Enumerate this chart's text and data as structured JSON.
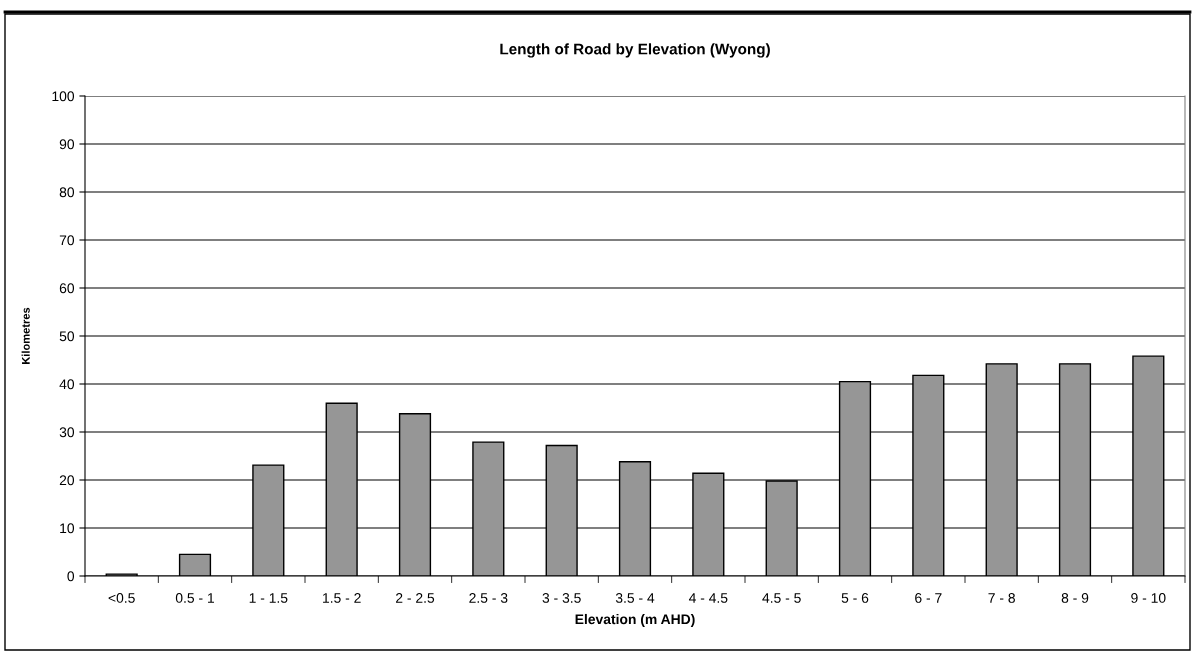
{
  "chart_data": {
    "type": "bar",
    "title": "Length of Road by Elevation (Wyong)",
    "xlabel": "Elevation (m AHD)",
    "ylabel": "Kilometres",
    "categories": [
      "<0.5",
      "0.5 - 1",
      "1 - 1.5",
      "1.5 - 2",
      "2 - 2.5",
      "2.5 - 3",
      "3 - 3.5",
      "3.5 - 4",
      "4 - 4.5",
      "4.5 - 5",
      "5 - 6",
      "6 - 7",
      "7 - 8",
      "8 - 9",
      "9 - 10"
    ],
    "values": [
      0.4,
      4.5,
      23.1,
      36.0,
      33.8,
      27.9,
      27.2,
      23.8,
      21.4,
      19.8,
      40.5,
      41.8,
      44.2,
      44.2,
      45.8
    ],
    "color": "#969696",
    "ylim": [
      0,
      100
    ],
    "yticks": [
      0,
      10,
      20,
      30,
      40,
      50,
      60,
      70,
      80,
      90,
      100
    ],
    "grid": "y",
    "legend": false
  }
}
